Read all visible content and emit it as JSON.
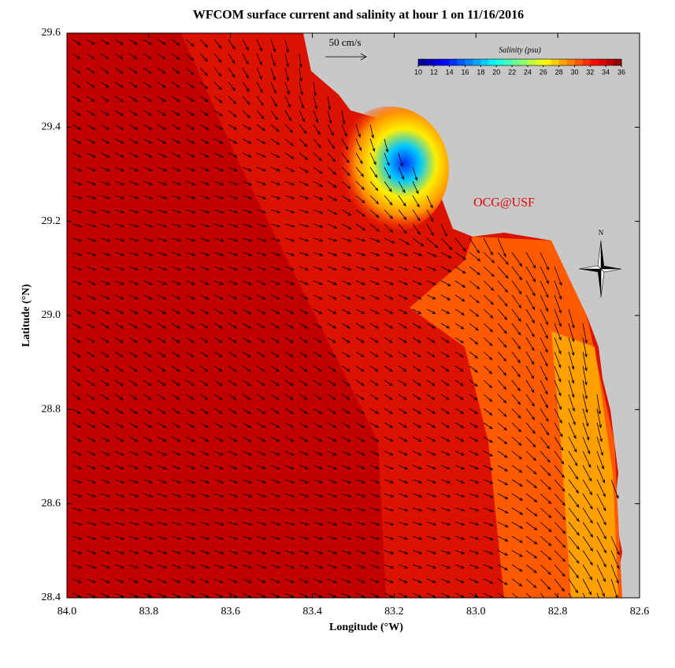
{
  "chart_data": {
    "type": "map",
    "title": "WFCOM surface current and salinity at hour 1 on 11/16/2016",
    "x_label": "Longitude (°W)",
    "y_label": "Latitude (°N)",
    "xlim": [
      84,
      82.6
    ],
    "xticks": [
      {
        "value": 84,
        "label": "84.0"
      },
      83.8,
      83.6,
      83.4,
      83.2,
      {
        "value": 83,
        "label": "83.0"
      },
      82.8,
      82.6
    ],
    "ylim": [
      28.4,
      29.6
    ],
    "yticks": [
      28.4,
      28.6,
      28.8,
      {
        "value": 29,
        "label": "29.0"
      },
      29.2,
      29.4,
      29.6
    ],
    "colorbar": {
      "title": "Salinity (psu)",
      "lim": [
        10,
        36
      ],
      "ticks": [
        10,
        12,
        14,
        16,
        18,
        20,
        22,
        24,
        26,
        28,
        30,
        32,
        34,
        36
      ]
    },
    "scale_label": "50 cm/s",
    "credit": "OCG@USF",
    "compass_label": "N",
    "land_color": "#c8c8c8"
  }
}
